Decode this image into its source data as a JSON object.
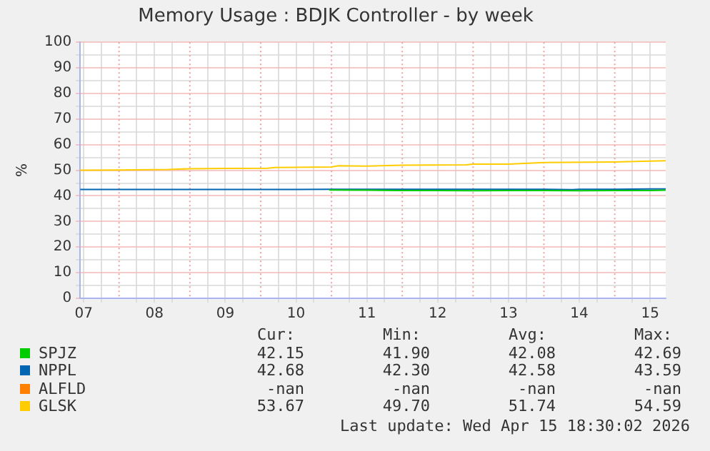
{
  "chart_data": {
    "type": "line",
    "title": "Memory Usage : BDJK Controller - by week",
    "ylabel": "%",
    "xlim": [
      6.95,
      15.22
    ],
    "xticks": [
      {
        "value": 7,
        "label": "07"
      },
      {
        "value": 7.25,
        "label": null
      },
      {
        "value": 7.75,
        "label": null
      },
      {
        "value": 8,
        "label": "08"
      },
      {
        "value": 8.25,
        "label": null
      },
      {
        "value": 8.75,
        "label": null
      },
      {
        "value": 9,
        "label": "09"
      },
      {
        "value": 9.25,
        "label": null
      },
      {
        "value": 9.75,
        "label": null
      },
      {
        "value": 10,
        "label": "10"
      },
      {
        "value": 10.25,
        "label": null
      },
      {
        "value": 10.75,
        "label": null
      },
      {
        "value": 11,
        "label": "11"
      },
      {
        "value": 11.25,
        "label": null
      },
      {
        "value": 11.75,
        "label": null
      },
      {
        "value": 12,
        "label": "12"
      },
      {
        "value": 12.25,
        "label": null
      },
      {
        "value": 12.75,
        "label": null
      },
      {
        "value": 13,
        "label": "13"
      },
      {
        "value": 13.25,
        "label": null
      },
      {
        "value": 13.75,
        "label": null
      },
      {
        "value": 14,
        "label": "14"
      },
      {
        "value": 14.25,
        "label": null
      },
      {
        "value": 14.75,
        "label": null
      },
      {
        "value": 15,
        "label": "15"
      }
    ],
    "ylim": [
      0,
      100
    ],
    "yticks": [
      0,
      {
        "value": 5,
        "label": null
      },
      10,
      {
        "value": 15,
        "label": null
      },
      20,
      {
        "value": 25,
        "label": null
      },
      30,
      {
        "value": 35,
        "label": null
      },
      40,
      {
        "value": 45,
        "label": null
      },
      50,
      {
        "value": 55,
        "label": null
      },
      60,
      {
        "value": 65,
        "label": null
      },
      70,
      {
        "value": 75,
        "label": null
      },
      80,
      {
        "value": 85,
        "label": null
      },
      90,
      {
        "value": 95,
        "label": null
      },
      100
    ],
    "grid": true,
    "legend": "bottom",
    "marker": "none",
    "line_style": "solid",
    "ref_lines": [
      {
        "axis": "x",
        "value": 7.5,
        "color": "#f0a0a0",
        "line_style": "dotted"
      },
      {
        "axis": "x",
        "value": 8.5,
        "color": "#f0a0a0",
        "line_style": "dotted"
      },
      {
        "axis": "x",
        "value": 9.5,
        "color": "#f0a0a0",
        "line_style": "dotted"
      },
      {
        "axis": "x",
        "value": 10.5,
        "color": "#f0a0a0",
        "line_style": "dotted"
      },
      {
        "axis": "x",
        "value": 11.5,
        "color": "#f0a0a0",
        "line_style": "dotted"
      },
      {
        "axis": "x",
        "value": 12.5,
        "color": "#f0a0a0",
        "line_style": "dotted"
      },
      {
        "axis": "x",
        "value": 13.5,
        "color": "#f0a0a0",
        "line_style": "dotted"
      },
      {
        "axis": "x",
        "value": 14.5,
        "color": "#f0a0a0",
        "line_style": "dotted"
      }
    ],
    "series": [
      {
        "name": "SPJZ",
        "color": "#00cc00",
        "x": [
          10.47,
          11.0,
          11.5,
          12.0,
          12.5,
          13.0,
          13.5,
          14.0,
          14.5,
          15.0,
          15.22
        ],
        "values": [
          42.3,
          42.2,
          42.1,
          42.1,
          42.0,
          42.1,
          42.1,
          42.0,
          42.1,
          42.1,
          42.2
        ]
      },
      {
        "name": "NPPL",
        "color": "#0066b3",
        "x": [
          6.95,
          7.5,
          8.0,
          8.5,
          9.0,
          9.5,
          10.0,
          10.5,
          11.0,
          11.5,
          12.0,
          12.5,
          13.0,
          13.5,
          13.9,
          14.0,
          14.5,
          15.0,
          15.22
        ],
        "values": [
          42.5,
          42.5,
          42.5,
          42.5,
          42.5,
          42.5,
          42.5,
          42.6,
          42.6,
          42.6,
          42.6,
          42.6,
          42.6,
          42.6,
          42.4,
          42.6,
          42.6,
          42.7,
          42.7
        ]
      },
      {
        "name": "ALFLD",
        "color": "#ff8000"
      },
      {
        "name": "GLSK",
        "color": "#ffcc00",
        "x": [
          6.95,
          7.5,
          8.2,
          8.5,
          9.0,
          9.6,
          9.7,
          10.5,
          10.6,
          11.0,
          11.5,
          12.4,
          12.5,
          13.0,
          13.5,
          14.5,
          14.9,
          15.22
        ],
        "values": [
          50.0,
          50.1,
          50.3,
          50.6,
          50.7,
          50.8,
          51.1,
          51.3,
          51.8,
          51.6,
          52.0,
          52.1,
          52.4,
          52.4,
          53.0,
          53.2,
          53.5,
          53.7
        ]
      }
    ],
    "annotations": [
      "Cur:",
      "Min:",
      "Avg:",
      "Max:",
      "42.15",
      "41.90",
      "42.08",
      "42.69",
      "42.68",
      "42.30",
      "42.58",
      "43.59",
      "-nan",
      "-nan",
      "-nan",
      "-nan",
      "53.67",
      "49.70",
      "51.74",
      "54.59",
      "Last update: Wed Apr 15 18:30:02 2026"
    ]
  }
}
